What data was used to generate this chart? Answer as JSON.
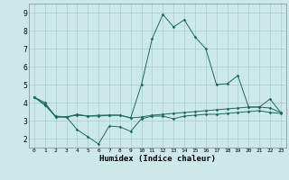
{
  "title": "",
  "xlabel": "Humidex (Indice chaleur)",
  "xlim": [
    -0.5,
    23.5
  ],
  "ylim": [
    1.5,
    9.5
  ],
  "yticks": [
    2,
    3,
    4,
    5,
    6,
    7,
    8,
    9
  ],
  "xticks": [
    0,
    1,
    2,
    3,
    4,
    5,
    6,
    7,
    8,
    9,
    10,
    11,
    12,
    13,
    14,
    15,
    16,
    17,
    18,
    19,
    20,
    21,
    22,
    23
  ],
  "bg_color": "#cde8e8",
  "grid_color": "#aacccc",
  "line_color": "#1a6b5a",
  "line1": [
    4.3,
    4.0,
    3.2,
    3.2,
    2.5,
    2.1,
    1.7,
    2.7,
    2.65,
    2.4,
    3.1,
    3.25,
    3.25,
    3.1,
    3.25,
    3.3,
    3.35,
    3.35,
    3.4,
    3.45,
    3.5,
    3.55,
    3.45,
    3.4
  ],
  "line2": [
    4.3,
    3.85,
    3.25,
    3.2,
    3.3,
    3.25,
    3.25,
    3.3,
    3.3,
    3.15,
    3.2,
    3.3,
    3.35,
    3.4,
    3.45,
    3.5,
    3.55,
    3.6,
    3.65,
    3.7,
    3.75,
    3.75,
    3.7,
    3.45
  ],
  "line3": [
    4.3,
    3.9,
    3.2,
    3.2,
    3.35,
    3.25,
    3.3,
    3.3,
    3.3,
    3.15,
    5.0,
    7.55,
    8.9,
    8.2,
    8.6,
    7.65,
    7.0,
    5.0,
    5.05,
    5.5,
    3.75,
    3.75,
    4.2,
    3.45
  ]
}
